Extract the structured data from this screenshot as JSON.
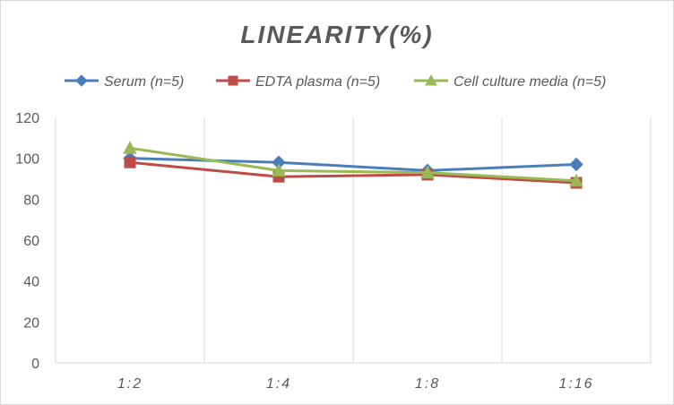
{
  "chart_data": {
    "type": "line",
    "title": "LINEARITY(%)",
    "categories": [
      "1:2",
      "1:4",
      "1:8",
      "1:16"
    ],
    "ylim": [
      0,
      120
    ],
    "yticks": [
      0,
      20,
      40,
      60,
      80,
      100,
      120
    ],
    "grid": "vertical",
    "legend_position": "top",
    "series": [
      {
        "name": "Serum (n=5)",
        "color": "#4a7ebb",
        "marker": "diamond",
        "values": [
          100,
          98,
          94,
          97
        ]
      },
      {
        "name": "EDTA plasma (n=5)",
        "color": "#be4b48",
        "marker": "square",
        "values": [
          98,
          91,
          92,
          88
        ]
      },
      {
        "name": "Cell culture media (n=5)",
        "color": "#98b954",
        "marker": "triangle",
        "values": [
          105,
          94,
          93,
          89
        ]
      }
    ]
  }
}
